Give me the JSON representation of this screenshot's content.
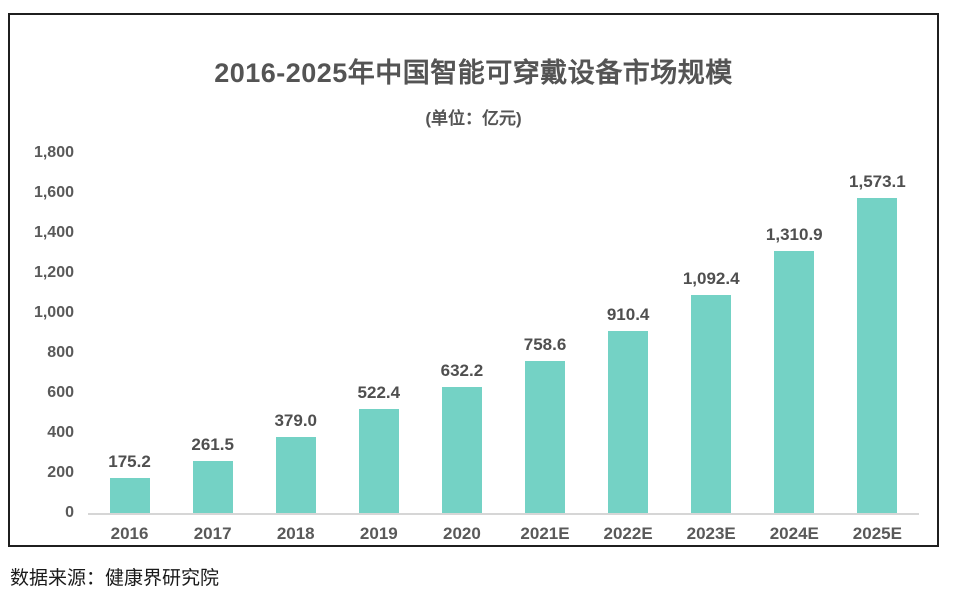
{
  "page": {
    "source_note": "数据来源：健康界研究院"
  },
  "chart_data": {
    "type": "bar",
    "title": "2016-2025年中国智能可穿戴设备市场规模",
    "subtitle": "(单位：亿元)",
    "unit": "亿元",
    "categories": [
      "2016",
      "2017",
      "2018",
      "2019",
      "2020",
      "2021E",
      "2022E",
      "2023E",
      "2024E",
      "2025E"
    ],
    "values": [
      175.2,
      261.5,
      379.0,
      522.4,
      632.2,
      758.6,
      910.4,
      1092.4,
      1310.9,
      1573.1
    ],
    "value_labels": [
      "175.2",
      "261.5",
      "379.0",
      "522.4",
      "632.2",
      "758.6",
      "910.4",
      "1,092.4",
      "1,310.9",
      "1,573.1"
    ],
    "ylim": [
      0,
      1800
    ],
    "y_ticks": [
      0,
      200,
      400,
      600,
      800,
      1000,
      1200,
      1400,
      1600,
      1800
    ],
    "y_tick_labels": [
      "0",
      "200",
      "400",
      "600",
      "800",
      "1,000",
      "1,200",
      "1,400",
      "1,600",
      "1,800"
    ],
    "grid": false,
    "legend": "none",
    "bar_color": "#74d2c5",
    "axis_label_color": "#595959",
    "data_label_color": "#4f4f4f",
    "baseline_color": "#d6d6d6",
    "frame_border_color": "#1f1f1f"
  }
}
